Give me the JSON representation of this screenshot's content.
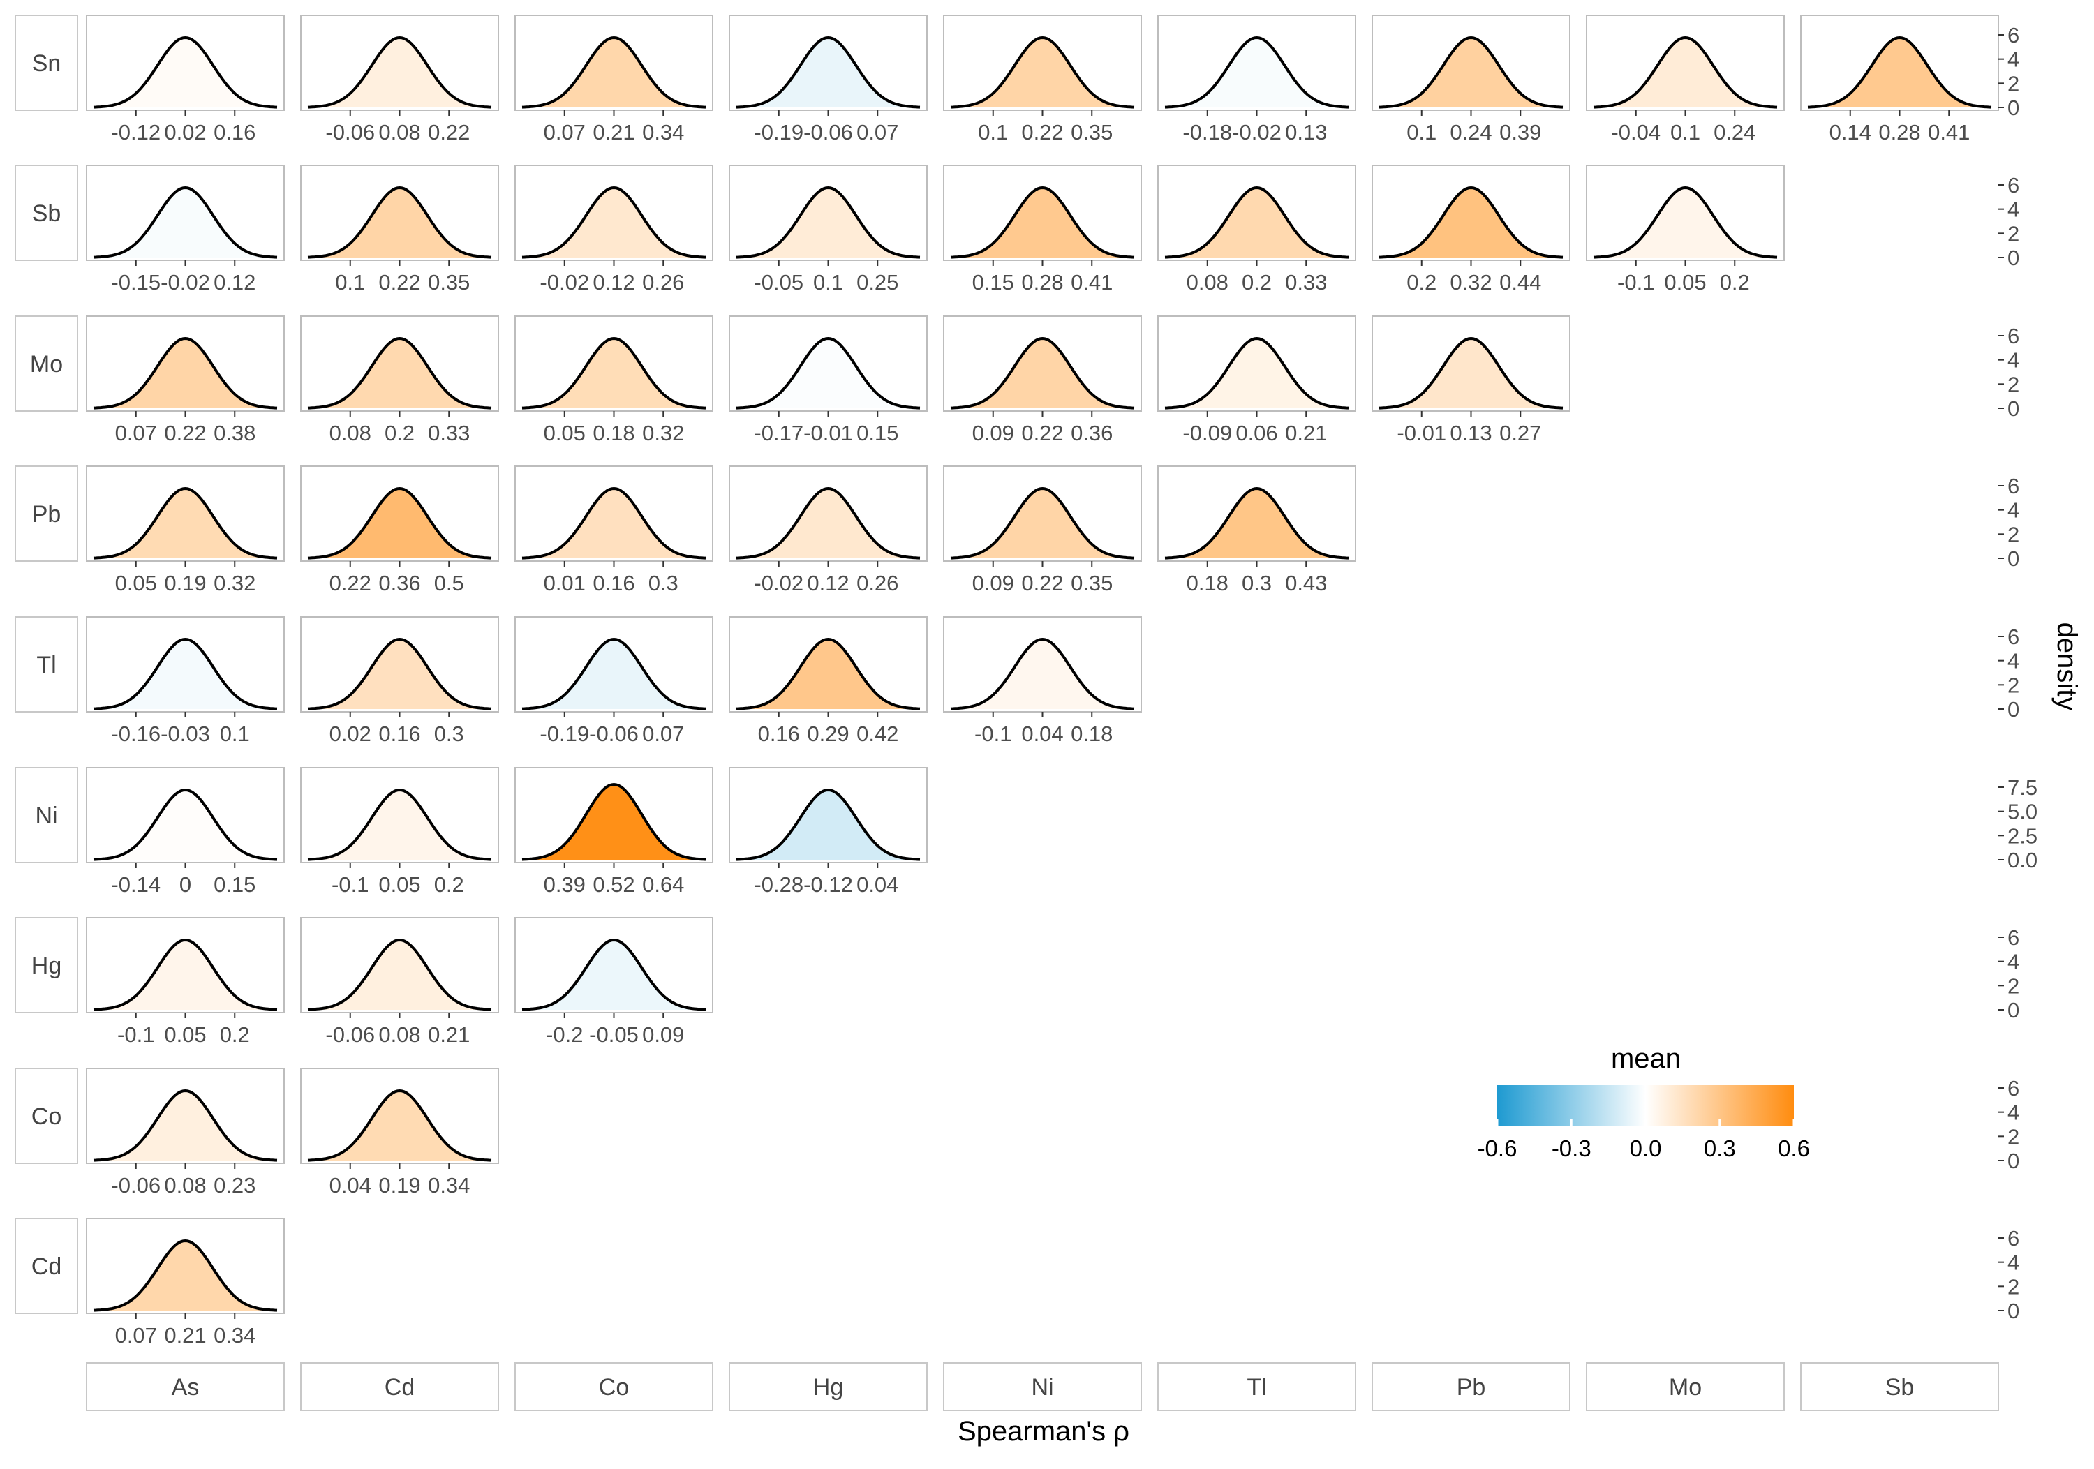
{
  "chart_data": {
    "type": "density-grid",
    "xlabel": "Spearman's ρ",
    "ylabel": "density",
    "columns": [
      "As",
      "Cd",
      "Co",
      "Hg",
      "Ni",
      "Tl",
      "Pb",
      "Mo",
      "Sb"
    ],
    "rows": [
      "Sn",
      "Sb",
      "Mo",
      "Pb",
      "Tl",
      "Ni",
      "Hg",
      "Co",
      "Cd"
    ],
    "legend": {
      "title": "mean",
      "position": "bottom-right",
      "range": [
        -0.6,
        0.6
      ],
      "ticks": [
        "-0.6",
        "-0.3",
        "0.0",
        "0.3",
        "0.6"
      ],
      "low_color": "#1e9ad1",
      "mid_color": "#ffffff",
      "high_color": "#ff8c0f"
    },
    "row_density_ticks": [
      [
        "0",
        "2",
        "4",
        "6"
      ],
      [
        "0",
        "2",
        "4",
        "6"
      ],
      [
        "0",
        "2",
        "4",
        "6"
      ],
      [
        "0",
        "2",
        "4",
        "6"
      ],
      [
        "0",
        "2",
        "4",
        "6"
      ],
      [
        "0.0",
        "2.5",
        "5.0",
        "7.5"
      ],
      [
        "0",
        "2",
        "4",
        "6"
      ],
      [
        "0",
        "2",
        "4",
        "6"
      ],
      [
        "0",
        "2",
        "4",
        "6"
      ]
    ],
    "panels": [
      [
        {
          "column": "As",
          "mean": 0.02,
          "ticks": [
            "-0.12",
            "0.02",
            "0.16"
          ]
        },
        {
          "column": "Cd",
          "mean": 0.08,
          "ticks": [
            "-0.06",
            "0.08",
            "0.22"
          ]
        },
        {
          "column": "Co",
          "mean": 0.21,
          "ticks": [
            "0.07",
            "0.21",
            "0.34"
          ]
        },
        {
          "column": "Hg",
          "mean": -0.06,
          "ticks": [
            "-0.19",
            "-0.06",
            "0.07"
          ]
        },
        {
          "column": "Ni",
          "mean": 0.22,
          "ticks": [
            "0.1",
            "0.22",
            "0.35"
          ]
        },
        {
          "column": "Tl",
          "mean": -0.02,
          "ticks": [
            "-0.18",
            "-0.02",
            "0.13"
          ]
        },
        {
          "column": "Pb",
          "mean": 0.24,
          "ticks": [
            "0.1",
            "0.24",
            "0.39"
          ]
        },
        {
          "column": "Mo",
          "mean": 0.1,
          "ticks": [
            "-0.04",
            "0.1",
            "0.24"
          ]
        },
        {
          "column": "Sb",
          "mean": 0.28,
          "ticks": [
            "0.14",
            "0.28",
            "0.41"
          ]
        }
      ],
      [
        {
          "column": "As",
          "mean": -0.02,
          "ticks": [
            "-0.15",
            "-0.02",
            "0.12"
          ]
        },
        {
          "column": "Cd",
          "mean": 0.22,
          "ticks": [
            "0.1",
            "0.22",
            "0.35"
          ]
        },
        {
          "column": "Co",
          "mean": 0.12,
          "ticks": [
            "-0.02",
            "0.12",
            "0.26"
          ]
        },
        {
          "column": "Hg",
          "mean": 0.1,
          "ticks": [
            "-0.05",
            "0.1",
            "0.25"
          ]
        },
        {
          "column": "Ni",
          "mean": 0.28,
          "ticks": [
            "0.15",
            "0.28",
            "0.41"
          ]
        },
        {
          "column": "Tl",
          "mean": 0.2,
          "ticks": [
            "0.08",
            "0.2",
            "0.33"
          ]
        },
        {
          "column": "Pb",
          "mean": 0.32,
          "ticks": [
            "0.2",
            "0.32",
            "0.44"
          ]
        },
        {
          "column": "Mo",
          "mean": 0.05,
          "ticks": [
            "-0.1",
            "0.05",
            "0.2"
          ]
        }
      ],
      [
        {
          "column": "As",
          "mean": 0.22,
          "ticks": [
            "0.07",
            "0.22",
            "0.38"
          ]
        },
        {
          "column": "Cd",
          "mean": 0.2,
          "ticks": [
            "0.08",
            "0.2",
            "0.33"
          ]
        },
        {
          "column": "Co",
          "mean": 0.18,
          "ticks": [
            "0.05",
            "0.18",
            "0.32"
          ]
        },
        {
          "column": "Hg",
          "mean": -0.01,
          "ticks": [
            "-0.17",
            "-0.01",
            "0.15"
          ]
        },
        {
          "column": "Ni",
          "mean": 0.22,
          "ticks": [
            "0.09",
            "0.22",
            "0.36"
          ]
        },
        {
          "column": "Tl",
          "mean": 0.06,
          "ticks": [
            "-0.09",
            "0.06",
            "0.21"
          ]
        },
        {
          "column": "Pb",
          "mean": 0.13,
          "ticks": [
            "-0.01",
            "0.13",
            "0.27"
          ]
        }
      ],
      [
        {
          "column": "As",
          "mean": 0.19,
          "ticks": [
            "0.05",
            "0.19",
            "0.32"
          ]
        },
        {
          "column": "Cd",
          "mean": 0.36,
          "ticks": [
            "0.22",
            "0.36",
            "0.5"
          ]
        },
        {
          "column": "Co",
          "mean": 0.16,
          "ticks": [
            "0.01",
            "0.16",
            "0.3"
          ]
        },
        {
          "column": "Hg",
          "mean": 0.12,
          "ticks": [
            "-0.02",
            "0.12",
            "0.26"
          ]
        },
        {
          "column": "Ni",
          "mean": 0.22,
          "ticks": [
            "0.09",
            "0.22",
            "0.35"
          ]
        },
        {
          "column": "Tl",
          "mean": 0.3,
          "ticks": [
            "0.18",
            "0.3",
            "0.43"
          ]
        }
      ],
      [
        {
          "column": "As",
          "mean": -0.03,
          "ticks": [
            "-0.16",
            "-0.03",
            "0.1"
          ]
        },
        {
          "column": "Cd",
          "mean": 0.16,
          "ticks": [
            "0.02",
            "0.16",
            "0.3"
          ]
        },
        {
          "column": "Co",
          "mean": -0.06,
          "ticks": [
            "-0.19",
            "-0.06",
            "0.07"
          ]
        },
        {
          "column": "Hg",
          "mean": 0.29,
          "ticks": [
            "0.16",
            "0.29",
            "0.42"
          ]
        },
        {
          "column": "Ni",
          "mean": 0.04,
          "ticks": [
            "-0.1",
            "0.04",
            "0.18"
          ]
        }
      ],
      [
        {
          "column": "As",
          "mean": 0.01,
          "ticks": [
            "-0.14",
            "0",
            "0.15"
          ]
        },
        {
          "column": "Cd",
          "mean": 0.05,
          "ticks": [
            "-0.1",
            "0.05",
            "0.2"
          ]
        },
        {
          "column": "Co",
          "mean": 0.58,
          "ticks": [
            "0.39",
            "0.52",
            "0.64"
          ]
        },
        {
          "column": "Hg",
          "mean": -0.12,
          "ticks": [
            "-0.28",
            "-0.12",
            "0.04"
          ]
        }
      ],
      [
        {
          "column": "As",
          "mean": 0.05,
          "ticks": [
            "-0.1",
            "0.05",
            "0.2"
          ]
        },
        {
          "column": "Cd",
          "mean": 0.08,
          "ticks": [
            "-0.06",
            "0.08",
            "0.21"
          ]
        },
        {
          "column": "Co",
          "mean": -0.05,
          "ticks": [
            "-0.2",
            "-0.05",
            "0.09"
          ]
        }
      ],
      [
        {
          "column": "As",
          "mean": 0.08,
          "ticks": [
            "-0.06",
            "0.08",
            "0.23"
          ]
        },
        {
          "column": "Cd",
          "mean": 0.19,
          "ticks": [
            "0.04",
            "0.19",
            "0.34"
          ]
        }
      ],
      [
        {
          "column": "As",
          "mean": 0.21,
          "ticks": [
            "0.07",
            "0.21",
            "0.34"
          ]
        }
      ]
    ]
  }
}
